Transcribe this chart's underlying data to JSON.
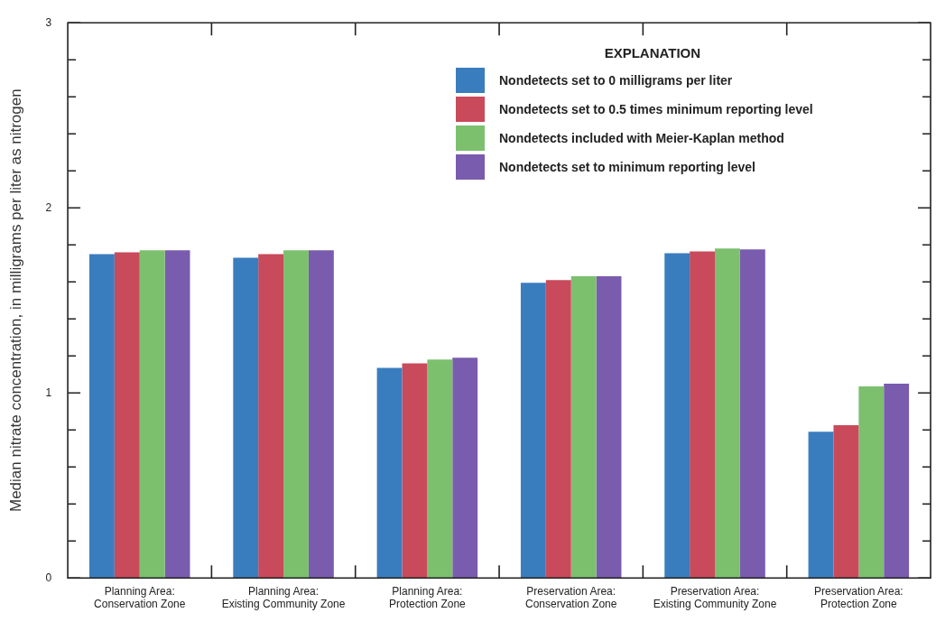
{
  "chart_data": {
    "type": "bar",
    "ylabel": "Median nitrate concentration, in milligrams per liter as nitrogen",
    "legend_title": "EXPLANATION",
    "categories": [
      "Planning Area: Conservation Zone",
      "Planning Area: Existing Community Zone",
      "Planning Area: Protection Zone",
      "Preservation Area: Conservation Zone",
      "Preservation Area: Existing Community Zone",
      "Preservation Area: Protection Zone"
    ],
    "series": [
      {
        "name": "Nondetects set to 0 milligrams per liter",
        "color": "#3a7dbf",
        "values": [
          1.75,
          1.73,
          1.135,
          1.595,
          1.755,
          0.79
        ]
      },
      {
        "name": "Nondetects set to 0.5 times minimum reporting level",
        "color": "#c94a5b",
        "values": [
          1.76,
          1.75,
          1.16,
          1.61,
          1.765,
          0.825
        ]
      },
      {
        "name": "Nondetects included with Meier-Kaplan method",
        "color": "#7cc06e",
        "values": [
          1.77,
          1.77,
          1.18,
          1.63,
          1.78,
          1.035
        ]
      },
      {
        "name": "Nondetects set to minimum reporting level",
        "color": "#7a5cae",
        "values": [
          1.77,
          1.77,
          1.19,
          1.63,
          1.775,
          1.05
        ]
      }
    ],
    "ylim": [
      0,
      3
    ],
    "yticks": [
      0,
      {
        "value": 0.2,
        "label": null
      },
      {
        "value": 0.4,
        "label": null
      },
      {
        "value": 0.6,
        "label": null
      },
      {
        "value": 0.8,
        "label": null
      },
      1,
      {
        "value": 1.2,
        "label": null
      },
      {
        "value": 1.4,
        "label": null
      },
      {
        "value": 1.6,
        "label": null
      },
      {
        "value": 1.8,
        "label": null
      },
      2,
      {
        "value": 2.2,
        "label": null
      },
      {
        "value": 2.4,
        "label": null
      },
      {
        "value": 2.6,
        "label": null
      },
      {
        "value": 2.8,
        "label": null
      },
      3
    ],
    "grid": false,
    "legend": "top right"
  }
}
